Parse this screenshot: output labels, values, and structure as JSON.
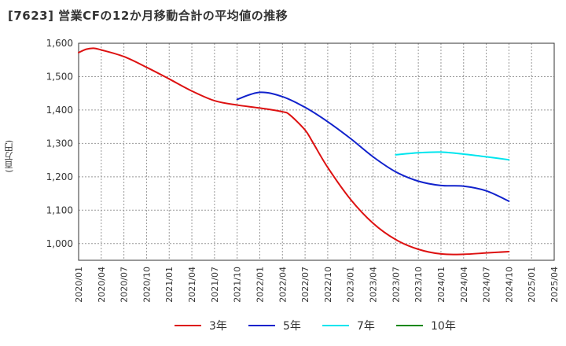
{
  "chart_data": {
    "type": "line",
    "title": "[7623]  営業CFの12か月移動合計の平均値の推移",
    "ylabel": "(百万円)",
    "xlabel": "",
    "ylim": [
      950,
      1600
    ],
    "yticks": [
      1000,
      1100,
      1200,
      1300,
      1400,
      1500,
      1600
    ],
    "ytick_labels": [
      "1,000",
      "1,100",
      "1,200",
      "1,300",
      "1,400",
      "1,500",
      "1,600"
    ],
    "xtick_labels": [
      "2020/01",
      "2020/04",
      "2020/07",
      "2020/10",
      "2021/01",
      "2021/04",
      "2021/07",
      "2021/10",
      "2022/01",
      "2022/04",
      "2022/07",
      "2022/10",
      "2023/01",
      "2023/04",
      "2023/07",
      "2023/10",
      "2024/01",
      "2024/04",
      "2024/07",
      "2024/10",
      "2025/01",
      "2025/04"
    ],
    "grid": true,
    "legend_position": "bottom",
    "series": [
      {
        "name": "3年",
        "color": "#dd1111",
        "x": [
          "2020/01",
          "2020/02",
          "2020/03",
          "2020/04",
          "2020/07",
          "2020/10",
          "2021/01",
          "2021/04",
          "2021/07",
          "2021/10",
          "2022/01",
          "2022/04",
          "2022/05",
          "2022/07",
          "2022/08",
          "2022/10",
          "2023/01",
          "2023/04",
          "2023/07",
          "2023/10",
          "2024/01",
          "2024/04",
          "2024/07",
          "2024/10"
        ],
        "values": [
          1572,
          1582,
          1585,
          1580,
          1560,
          1528,
          1493,
          1457,
          1428,
          1415,
          1406,
          1395,
          1385,
          1340,
          1304,
          1228,
          1133,
          1061,
          1012,
          983,
          969,
          968,
          972,
          976
        ]
      },
      {
        "name": "5年",
        "color": "#1122cc",
        "x": [
          "2021/10",
          "2022/01",
          "2022/04",
          "2022/07",
          "2022/10",
          "2023/01",
          "2023/04",
          "2023/07",
          "2023/10",
          "2024/01",
          "2024/04",
          "2024/07",
          "2024/10"
        ],
        "values": [
          1432,
          1453,
          1440,
          1408,
          1365,
          1315,
          1260,
          1215,
          1187,
          1174,
          1172,
          1158,
          1127
        ]
      },
      {
        "name": "7年",
        "color": "#00e5ee",
        "x": [
          "2023/07",
          "2023/10",
          "2024/01",
          "2024/04",
          "2024/07",
          "2024/10"
        ],
        "values": [
          1266,
          1272,
          1274,
          1268,
          1260,
          1251
        ]
      },
      {
        "name": "10年",
        "color": "#118811",
        "x": [],
        "values": []
      }
    ]
  }
}
